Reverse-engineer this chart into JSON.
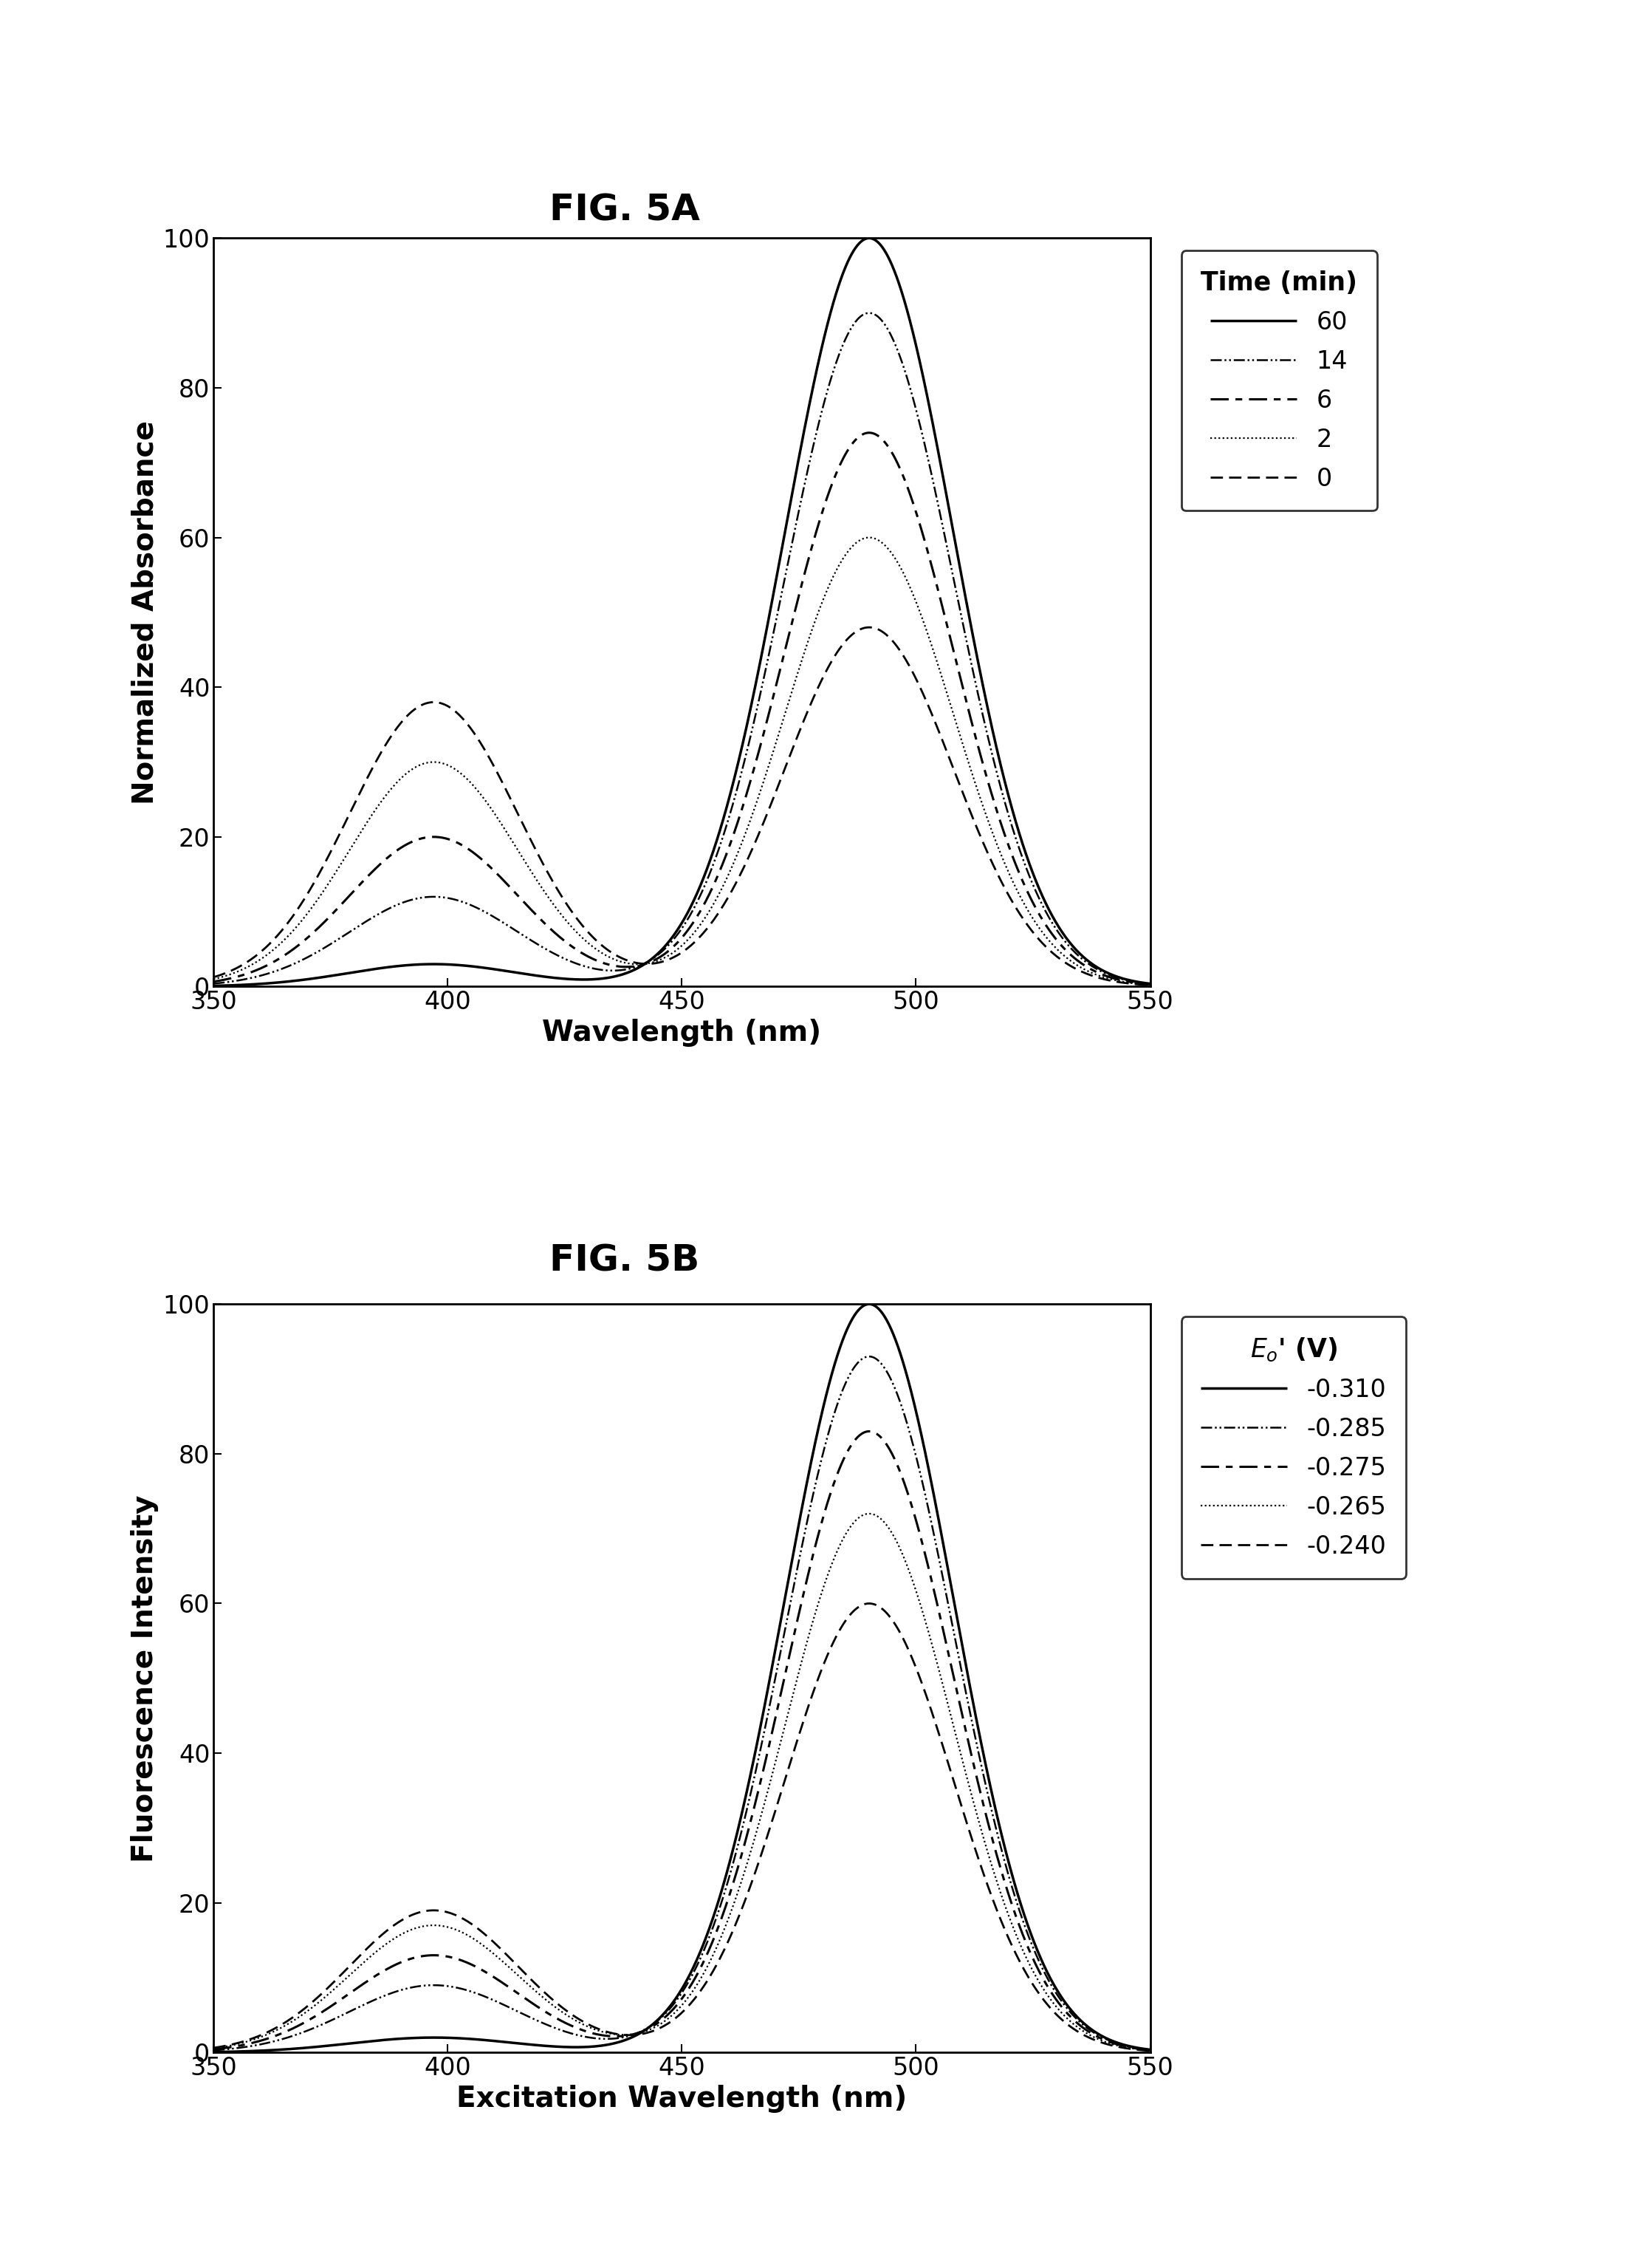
{
  "fig_title_A": "FIG. 5A",
  "fig_title_B": "FIG. 5B",
  "xlabel_A": "Wavelength (nm)",
  "ylabel_A": "Normalized Absorbance",
  "xlabel_B": "Excitation Wavelength (nm)",
  "ylabel_B": "Fluorescence Intensity",
  "xlim": [
    350,
    550
  ],
  "ylim": [
    0,
    100
  ],
  "xticks": [
    350,
    400,
    450,
    500,
    550
  ],
  "yticks": [
    0,
    20,
    40,
    60,
    80,
    100
  ],
  "legend_title_A": "Time (min)",
  "legend_labels_A": [
    "60",
    "14",
    "6",
    "2",
    "0"
  ],
  "legend_title_B": "E$_o$' (V)",
  "legend_labels_B": [
    "-0.310",
    "-0.285",
    "-0.275",
    "-0.265",
    "-0.240"
  ],
  "background_color": "#ffffff",
  "line_color": "#000000",
  "title_fontsize": 36,
  "label_fontsize": 28,
  "tick_fontsize": 24,
  "legend_fontsize": 24,
  "amp490_A": [
    100,
    90,
    74,
    60,
    48
  ],
  "amp395_A": [
    3,
    12,
    20,
    30,
    38
  ],
  "peak490_A": 490,
  "peak395_A": 397,
  "sigma490_A": 18,
  "sigma395_A": 18,
  "amp490_B": [
    100,
    93,
    83,
    72,
    60
  ],
  "amp395_B": [
    2,
    9,
    13,
    17,
    19
  ],
  "peak490_B": 490,
  "peak395_B": 397,
  "sigma490_B": 18,
  "sigma395_B": 18
}
